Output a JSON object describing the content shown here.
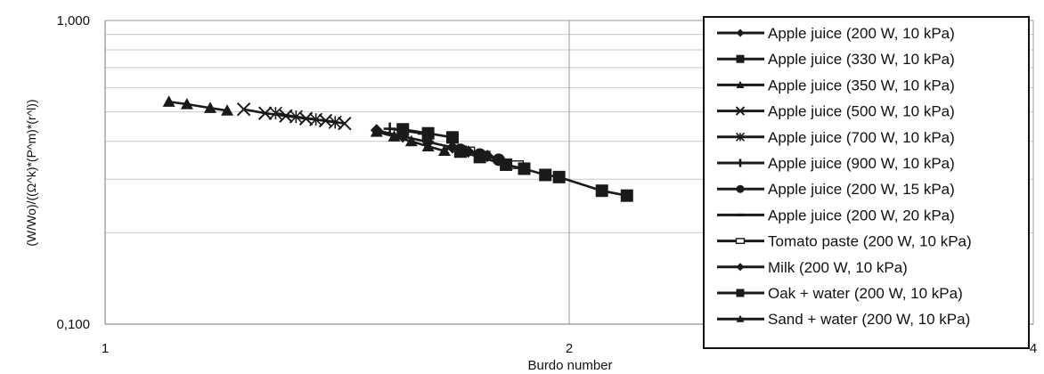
{
  "chart_data": {
    "type": "scatter",
    "xlabel": "Burdo number",
    "ylabel": "(W/Wo)/((Ω^k)*(P^m)*(r^l))",
    "x_scale": "log",
    "y_scale": "log",
    "xlim": [
      1,
      4
    ],
    "ylim": [
      0.1,
      1.0
    ],
    "x_ticks": [
      {
        "value": 1,
        "label": "1"
      },
      {
        "value": 2,
        "label": "2"
      },
      {
        "value": 4,
        "label": "4"
      }
    ],
    "y_ticks": [
      {
        "value": 0.1,
        "label": "0,100"
      },
      {
        "value": 1.0,
        "label": "1,000"
      }
    ],
    "grid": true,
    "legend_position": "right",
    "series": [
      {
        "name": "Apple juice (200 W, 10 kPa)",
        "marker": "diamond",
        "x": [
          1.5,
          1.56,
          1.62,
          1.68
        ],
        "y": [
          0.435,
          0.415,
          0.398,
          0.382
        ]
      },
      {
        "name": "Apple juice (330 W, 10 kPa)",
        "marker": "square",
        "x": [
          1.56,
          1.62,
          1.68
        ],
        "y": [
          0.438,
          0.425,
          0.412
        ]
      },
      {
        "name": "Apple juice (350 W, 10 kPa)",
        "marker": "triangle",
        "x": [
          1.5,
          1.54,
          1.58,
          1.62,
          1.66
        ],
        "y": [
          0.43,
          0.415,
          0.4,
          0.385,
          0.372
        ]
      },
      {
        "name": "Apple juice (500 W, 10 kPa)",
        "marker": "x",
        "x": [
          1.23,
          1.27,
          1.31,
          1.35,
          1.39,
          1.43
        ],
        "y": [
          0.51,
          0.495,
          0.485,
          0.475,
          0.468,
          0.458
        ]
      },
      {
        "name": "Apple juice (700 W, 10 kPa)",
        "marker": "asterisk",
        "x": [
          1.29,
          1.33,
          1.37,
          1.41
        ],
        "y": [
          0.495,
          0.482,
          0.472,
          0.462
        ]
      },
      {
        "name": "Apple juice (900 W, 10 kPa)",
        "marker": "plus",
        "x": [
          1.53,
          1.57,
          1.61
        ],
        "y": [
          0.44,
          0.432,
          0.424
        ]
      },
      {
        "name": "Apple juice (200 W, 15 kPa)",
        "marker": "circle",
        "x": [
          1.7,
          1.75,
          1.8
        ],
        "y": [
          0.375,
          0.362,
          0.348
        ]
      },
      {
        "name": "Apple juice (200 W, 20 kPa)",
        "marker": "dash",
        "x": [
          1.68,
          1.72,
          1.76,
          1.8
        ],
        "y": [
          0.378,
          0.37,
          0.36,
          0.35
        ]
      },
      {
        "name": "Tomato paste (200 W, 10 kPa)",
        "marker": "rect-open",
        "x": [
          1.72,
          1.76,
          1.85
        ],
        "y": [
          0.372,
          0.36,
          0.335
        ]
      },
      {
        "name": "Milk (200 W, 10 kPa)",
        "marker": "diamond",
        "x": [
          1.72,
          1.77
        ],
        "y": [
          0.37,
          0.358
        ]
      },
      {
        "name": "Oak + water (200 W, 10 kPa)",
        "marker": "square",
        "x": [
          1.7,
          1.75,
          1.82,
          1.87,
          1.93,
          1.97,
          2.1,
          2.18
        ],
        "y": [
          0.37,
          0.355,
          0.335,
          0.325,
          0.31,
          0.305,
          0.275,
          0.265
        ]
      },
      {
        "name": "Sand + water (200 W, 10 kPa)",
        "marker": "triangle",
        "x": [
          1.1,
          1.13,
          1.17,
          1.2
        ],
        "y": [
          0.54,
          0.53,
          0.515,
          0.505
        ]
      }
    ]
  }
}
